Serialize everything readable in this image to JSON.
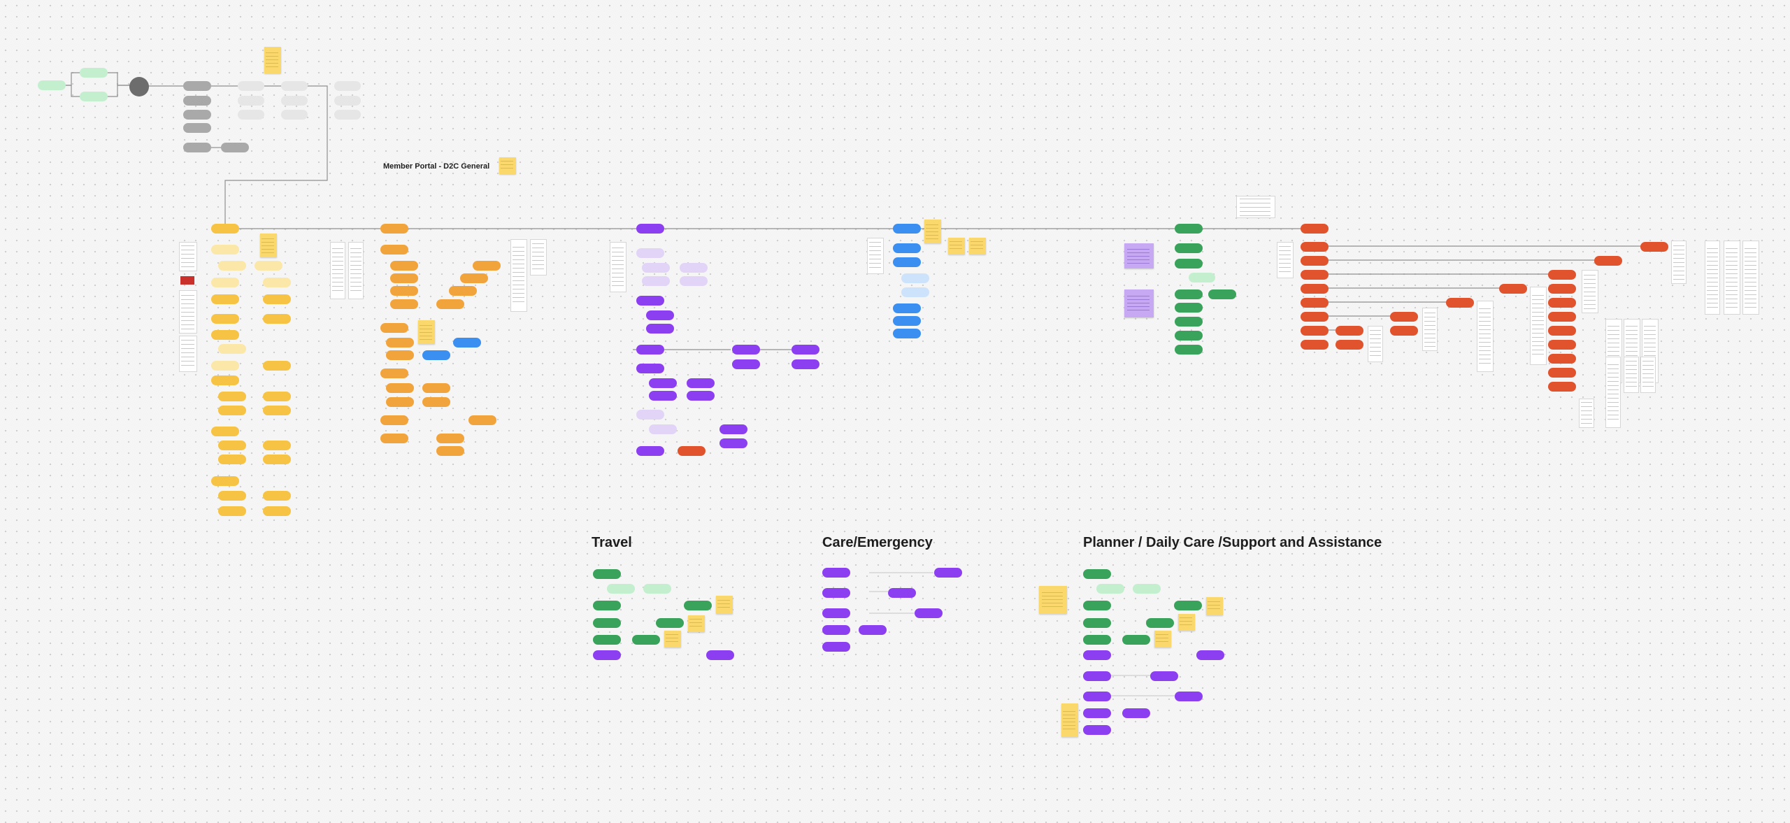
{
  "board": {
    "title": "Member Portal - D2C General",
    "sections": {
      "travel": "Travel",
      "care_emergency": "Care/Emergency",
      "planner": "Planner / Daily Care /Support and Assistance"
    }
  },
  "colors": {
    "canvas_bg": "#f5f5f5",
    "yellow": "#f6c344",
    "yellow_light": "#fbe7a8",
    "orange": "#f2a43c",
    "purple": "#8b3ff0",
    "purple_light": "#e1d4f7",
    "blue": "#3b8ff0",
    "blue_light": "#cde3fb",
    "green": "#3aa35b",
    "green_light": "#c3efcf",
    "red": "#e0532c",
    "grey": "#a9a9a9",
    "grey_light": "#e6e6e6",
    "dark_node": "#6d6d6d",
    "sticky": "#fbd86b"
  }
}
